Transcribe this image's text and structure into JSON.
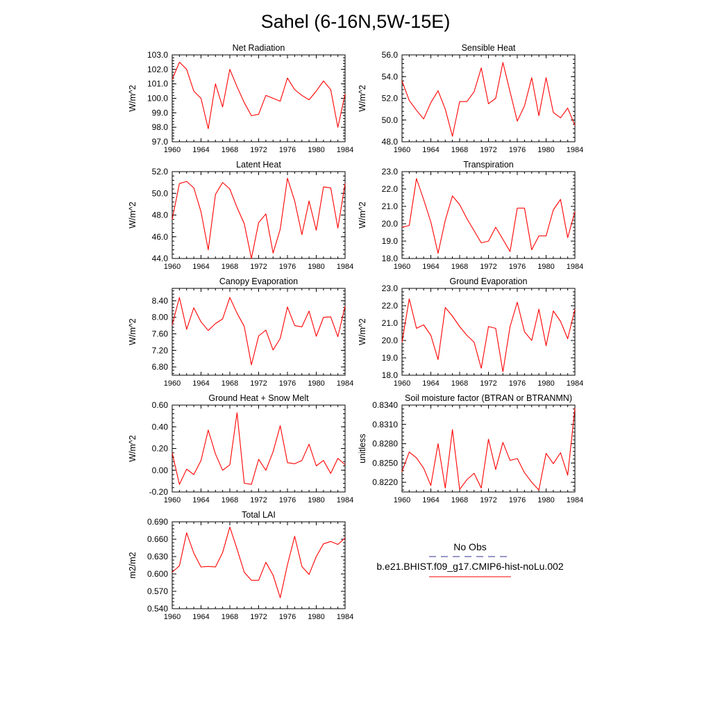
{
  "title": "Sahel (6-16N,5W-15E)",
  "colors": {
    "model_line": "#ff0000",
    "obs_line": "#2b2f8f",
    "axis": "#000000"
  },
  "legend": {
    "obs_label": "No Obs",
    "model_label": "b.e21.BHIST.f09_g17.CMIP6-hist-noLu.002"
  },
  "chart_data": [
    {
      "type": "line",
      "title": "Net Radiation",
      "ylabel": "W/m^2",
      "xlim": [
        1960,
        1984
      ],
      "ylim": [
        97.0,
        103.0
      ],
      "xticks": [
        "1960",
        "1964",
        "1968",
        "1972",
        "1976",
        "1980",
        "1984"
      ],
      "yticks": [
        "97.0",
        "98.0",
        "99.0",
        "100.0",
        "101.0",
        "102.0",
        "103.0"
      ],
      "x": [
        1960,
        1961,
        1962,
        1963,
        1964,
        1965,
        1966,
        1967,
        1968,
        1969,
        1970,
        1971,
        1972,
        1973,
        1974,
        1975,
        1976,
        1977,
        1978,
        1979,
        1980,
        1981,
        1982,
        1983,
        1984
      ],
      "series": [
        {
          "values": [
            101.3,
            102.5,
            102.0,
            100.5,
            100.0,
            97.9,
            101.0,
            99.4,
            102.0,
            100.8,
            99.7,
            98.8,
            98.9,
            100.2,
            100.0,
            99.8,
            101.4,
            100.6,
            100.2,
            99.9,
            100.5,
            101.2,
            100.6,
            98.0,
            100.3
          ]
        }
      ]
    },
    {
      "type": "line",
      "title": "Sensible Heat",
      "ylabel": "W/m^2",
      "xlim": [
        1960,
        1984
      ],
      "ylim": [
        48.0,
        56.0
      ],
      "xticks": [
        "1960",
        "1964",
        "1968",
        "1972",
        "1976",
        "1980",
        "1984"
      ],
      "yticks": [
        "48.0",
        "50.0",
        "52.0",
        "54.0",
        "56.0"
      ],
      "x": [
        1960,
        1961,
        1962,
        1963,
        1964,
        1965,
        1966,
        1967,
        1968,
        1969,
        1970,
        1971,
        1972,
        1973,
        1974,
        1975,
        1976,
        1977,
        1978,
        1979,
        1980,
        1981,
        1982,
        1983,
        1984
      ],
      "series": [
        {
          "values": [
            53.6,
            51.8,
            50.9,
            50.1,
            51.6,
            52.7,
            51.0,
            48.5,
            51.7,
            51.7,
            52.6,
            54.8,
            51.5,
            52.0,
            55.3,
            52.6,
            49.9,
            51.3,
            53.9,
            50.4,
            53.9,
            50.7,
            50.2,
            51.1,
            49.5
          ]
        }
      ]
    },
    {
      "type": "line",
      "title": "Latent Heat",
      "ylabel": "W/m^2",
      "xlim": [
        1960,
        1984
      ],
      "ylim": [
        44.0,
        52.0
      ],
      "xticks": [
        "1960",
        "1964",
        "1968",
        "1972",
        "1976",
        "1980",
        "1984"
      ],
      "yticks": [
        "44.0",
        "46.0",
        "48.0",
        "50.0",
        "52.0"
      ],
      "x": [
        1960,
        1961,
        1962,
        1963,
        1964,
        1965,
        1966,
        1967,
        1968,
        1969,
        1970,
        1971,
        1972,
        1973,
        1974,
        1975,
        1976,
        1977,
        1978,
        1979,
        1980,
        1981,
        1982,
        1983,
        1984
      ],
      "series": [
        {
          "values": [
            47.6,
            50.9,
            51.1,
            50.5,
            48.3,
            44.8,
            49.9,
            51.0,
            50.4,
            48.7,
            47.2,
            44.0,
            47.3,
            48.1,
            44.5,
            46.7,
            51.4,
            49.3,
            46.2,
            49.3,
            46.6,
            50.6,
            50.5,
            46.8,
            50.9
          ]
        }
      ]
    },
    {
      "type": "line",
      "title": "Transpiration",
      "ylabel": "W/m^2",
      "xlim": [
        1960,
        1984
      ],
      "ylim": [
        18.0,
        23.0
      ],
      "xticks": [
        "1960",
        "1964",
        "1968",
        "1972",
        "1976",
        "1980",
        "1984"
      ],
      "yticks": [
        "18.0",
        "19.0",
        "20.0",
        "21.0",
        "22.0",
        "23.0"
      ],
      "x": [
        1960,
        1961,
        1962,
        1963,
        1964,
        1965,
        1966,
        1967,
        1968,
        1969,
        1970,
        1971,
        1972,
        1973,
        1974,
        1975,
        1976,
        1977,
        1978,
        1979,
        1980,
        1981,
        1982,
        1983,
        1984
      ],
      "series": [
        {
          "values": [
            19.8,
            19.9,
            22.6,
            21.4,
            20.1,
            18.3,
            20.2,
            21.6,
            21.1,
            20.3,
            19.6,
            18.9,
            19.0,
            19.8,
            19.1,
            18.4,
            20.9,
            20.9,
            18.5,
            19.3,
            19.3,
            20.8,
            21.4,
            19.2,
            20.7
          ]
        }
      ]
    },
    {
      "type": "line",
      "title": "Canopy Evaporation",
      "ylabel": "W/m^2",
      "xlim": [
        1960,
        1984
      ],
      "ylim": [
        6.6,
        8.7
      ],
      "xticks": [
        "1960",
        "1964",
        "1968",
        "1972",
        "1976",
        "1980",
        "1984"
      ],
      "yticks": [
        "6.80",
        "7.20",
        "7.60",
        "8.00",
        "8.40"
      ],
      "x": [
        1960,
        1961,
        1962,
        1963,
        1964,
        1965,
        1966,
        1967,
        1968,
        1969,
        1970,
        1971,
        1972,
        1973,
        1974,
        1975,
        1976,
        1977,
        1978,
        1979,
        1980,
        1981,
        1982,
        1983,
        1984
      ],
      "series": [
        {
          "values": [
            7.82,
            8.48,
            7.71,
            8.23,
            7.89,
            7.68,
            7.85,
            7.96,
            8.48,
            8.1,
            7.78,
            6.85,
            7.55,
            7.69,
            7.21,
            7.49,
            8.25,
            7.8,
            7.77,
            8.15,
            7.54,
            8.0,
            8.01,
            7.53,
            8.27
          ]
        }
      ]
    },
    {
      "type": "line",
      "title": "Ground Evaporation",
      "ylabel": "W/m^2",
      "xlim": [
        1960,
        1984
      ],
      "ylim": [
        18.0,
        23.0
      ],
      "xticks": [
        "1960",
        "1964",
        "1968",
        "1972",
        "1976",
        "1980",
        "1984"
      ],
      "yticks": [
        "18.0",
        "19.0",
        "20.0",
        "21.0",
        "22.0",
        "23.0"
      ],
      "x": [
        1960,
        1961,
        1962,
        1963,
        1964,
        1965,
        1966,
        1967,
        1968,
        1969,
        1970,
        1971,
        1972,
        1973,
        1974,
        1975,
        1976,
        1977,
        1978,
        1979,
        1980,
        1981,
        1982,
        1983,
        1984
      ],
      "series": [
        {
          "values": [
            19.9,
            22.4,
            20.7,
            20.9,
            20.3,
            18.9,
            21.9,
            21.4,
            20.8,
            20.3,
            19.9,
            18.4,
            20.8,
            20.7,
            18.2,
            20.8,
            22.2,
            20.5,
            20.0,
            21.8,
            19.7,
            21.7,
            21.1,
            20.1,
            21.8
          ]
        }
      ]
    },
    {
      "type": "line",
      "title": "Ground Heat + Snow Melt",
      "ylabel": "W/m^2",
      "xlim": [
        1960,
        1984
      ],
      "ylim": [
        -0.2,
        0.6
      ],
      "xticks": [
        "1960",
        "1964",
        "1968",
        "1972",
        "1976",
        "1980",
        "1984"
      ],
      "yticks": [
        "-0.20",
        "0.00",
        "0.20",
        "0.40",
        "0.60"
      ],
      "x": [
        1960,
        1961,
        1962,
        1963,
        1964,
        1965,
        1966,
        1967,
        1968,
        1969,
        1970,
        1971,
        1972,
        1973,
        1974,
        1975,
        1976,
        1977,
        1978,
        1979,
        1980,
        1981,
        1982,
        1983,
        1984
      ],
      "series": [
        {
          "values": [
            0.16,
            -0.13,
            0.01,
            -0.04,
            0.09,
            0.37,
            0.15,
            0.0,
            0.05,
            0.53,
            -0.12,
            -0.13,
            0.1,
            0.0,
            0.17,
            0.41,
            0.07,
            0.06,
            0.09,
            0.24,
            0.04,
            0.09,
            -0.03,
            0.11,
            0.05
          ]
        }
      ]
    },
    {
      "type": "line",
      "title": "Soil moisture factor (BTRAN or BTRANMN)",
      "ylabel": "unitless",
      "xlim": [
        1960,
        1984
      ],
      "ylim": [
        0.8205,
        0.834
      ],
      "xticks": [
        "1960",
        "1964",
        "1968",
        "1972",
        "1976",
        "1980",
        "1984"
      ],
      "yticks": [
        "0.8220",
        "0.8250",
        "0.8280",
        "0.8310",
        "0.8340"
      ],
      "x": [
        1960,
        1961,
        1962,
        1963,
        1964,
        1965,
        1966,
        1967,
        1968,
        1969,
        1970,
        1971,
        1972,
        1973,
        1974,
        1975,
        1976,
        1977,
        1978,
        1979,
        1980,
        1981,
        1982,
        1983,
        1984
      ],
      "series": [
        {
          "values": [
            0.8237,
            0.8267,
            0.8258,
            0.8242,
            0.8215,
            0.828,
            0.8211,
            0.8302,
            0.8209,
            0.8224,
            0.8234,
            0.8211,
            0.8287,
            0.824,
            0.8282,
            0.8254,
            0.8257,
            0.8235,
            0.822,
            0.8208,
            0.8265,
            0.8249,
            0.8266,
            0.8231,
            0.8335
          ]
        }
      ]
    },
    {
      "type": "line",
      "title": "Total LAI",
      "ylabel": "m2/m2",
      "xlim": [
        1960,
        1984
      ],
      "ylim": [
        0.54,
        0.69
      ],
      "xticks": [
        "1960",
        "1964",
        "1968",
        "1972",
        "1976",
        "1980",
        "1984"
      ],
      "yticks": [
        "0.540",
        "0.570",
        "0.600",
        "0.630",
        "0.660",
        "0.690"
      ],
      "x": [
        1960,
        1961,
        1962,
        1963,
        1964,
        1965,
        1966,
        1967,
        1968,
        1969,
        1970,
        1971,
        1972,
        1973,
        1974,
        1975,
        1976,
        1977,
        1978,
        1979,
        1980,
        1981,
        1982,
        1983,
        1984
      ],
      "series": [
        {
          "values": [
            0.603,
            0.614,
            0.671,
            0.636,
            0.612,
            0.613,
            0.612,
            0.637,
            0.681,
            0.643,
            0.603,
            0.589,
            0.589,
            0.62,
            0.598,
            0.559,
            0.616,
            0.665,
            0.613,
            0.599,
            0.63,
            0.652,
            0.656,
            0.651,
            0.662
          ]
        }
      ]
    }
  ]
}
